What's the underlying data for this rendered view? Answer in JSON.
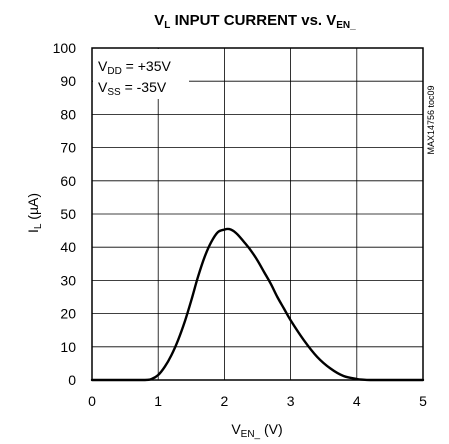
{
  "chart_data": {
    "type": "line",
    "title": {
      "main": "V",
      "sub1": "L",
      "mid": " INPUT CURRENT vs. V",
      "sub2": "EN_"
    },
    "xlabel": {
      "main": "V",
      "sub": "EN_",
      "rest": " (V)"
    },
    "ylabel": {
      "main": "I",
      "sub": "L",
      "rest": " (µA)"
    },
    "xlim": [
      0,
      5
    ],
    "ylim": [
      0,
      100
    ],
    "xticks": [
      "0",
      "1",
      "2",
      "3",
      "4",
      "5"
    ],
    "yticks": [
      "0",
      "10",
      "20",
      "30",
      "40",
      "50",
      "60",
      "70",
      "80",
      "90",
      "100"
    ],
    "grid": true,
    "part_number": "MAX14756 toc09",
    "legend": [
      {
        "main": "V",
        "sub": "DD",
        "rest": " = +35V"
      },
      {
        "main": "V",
        "sub": "SS",
        "rest": " = -35V"
      }
    ],
    "series": [
      {
        "x": [
          0,
          0.5,
          0.8,
          0.9,
          1.0,
          1.1,
          1.2,
          1.3,
          1.4,
          1.5,
          1.6,
          1.7,
          1.8,
          1.9,
          2.0,
          2.05,
          2.1,
          2.15,
          2.2,
          2.3,
          2.4,
          2.5,
          2.6,
          2.7,
          2.8,
          2.9,
          3.0,
          3.2,
          3.4,
          3.6,
          3.8,
          4.0,
          4.1,
          4.2,
          4.3,
          5.0
        ],
        "y": [
          0,
          0,
          0,
          0.3,
          1.5,
          4,
          7.5,
          12,
          17.5,
          24,
          31,
          37,
          41.5,
          44.5,
          45.3,
          45.5,
          45.3,
          44.7,
          43.8,
          41.5,
          39,
          36,
          32.5,
          29,
          25,
          21.5,
          18,
          12,
          7,
          3.5,
          1.2,
          0.3,
          0.1,
          0,
          0,
          0
        ]
      }
    ]
  }
}
